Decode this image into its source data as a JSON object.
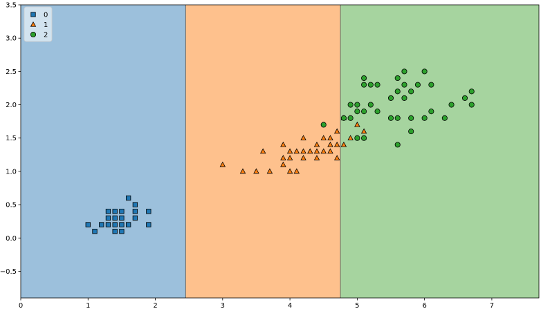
{
  "chart_data": {
    "type": "scatter",
    "title": "",
    "xlabel": "",
    "ylabel": "",
    "xlim": [
      0,
      7.7
    ],
    "ylim": [
      -0.9,
      3.5
    ],
    "x_ticks": [
      0,
      1,
      2,
      3,
      4,
      5,
      6,
      7
    ],
    "y_ticks": [
      -0.5,
      0.0,
      0.5,
      1.0,
      1.5,
      2.0,
      2.5,
      3.0,
      3.5
    ],
    "y_tick_labels": [
      "−0.5",
      "0.0",
      "0.5",
      "1.0",
      "1.5",
      "2.0",
      "2.5",
      "3.0",
      "3.5"
    ],
    "grid": false,
    "legend_placement": "top-left",
    "regions": [
      {
        "class": "0",
        "x_from": 0,
        "x_to": 2.45,
        "color": "#9cc0dc"
      },
      {
        "class": "1",
        "x_from": 2.45,
        "x_to": 4.75,
        "color": "#fec18d"
      },
      {
        "class": "2",
        "x_from": 4.75,
        "x_to": 7.7,
        "color": "#a6d49f"
      }
    ],
    "series": [
      {
        "name": "0",
        "marker": "square",
        "color": "#1f77b4",
        "points": [
          [
            1.0,
            0.2
          ],
          [
            1.1,
            0.1
          ],
          [
            1.2,
            0.2
          ],
          [
            1.3,
            0.2
          ],
          [
            1.3,
            0.3
          ],
          [
            1.3,
            0.4
          ],
          [
            1.4,
            0.1
          ],
          [
            1.4,
            0.2
          ],
          [
            1.4,
            0.3
          ],
          [
            1.4,
            0.4
          ],
          [
            1.5,
            0.1
          ],
          [
            1.5,
            0.2
          ],
          [
            1.5,
            0.3
          ],
          [
            1.5,
            0.4
          ],
          [
            1.6,
            0.2
          ],
          [
            1.6,
            0.6
          ],
          [
            1.7,
            0.3
          ],
          [
            1.7,
            0.4
          ],
          [
            1.7,
            0.5
          ],
          [
            1.9,
            0.2
          ],
          [
            1.9,
            0.4
          ]
        ]
      },
      {
        "name": "1",
        "marker": "triangle",
        "color": "#ff7f0e",
        "points": [
          [
            3.0,
            1.1
          ],
          [
            3.3,
            1.0
          ],
          [
            3.5,
            1.0
          ],
          [
            3.6,
            1.3
          ],
          [
            3.7,
            1.0
          ],
          [
            3.9,
            1.1
          ],
          [
            3.9,
            1.2
          ],
          [
            3.9,
            1.4
          ],
          [
            4.0,
            1.0
          ],
          [
            4.0,
            1.2
          ],
          [
            4.0,
            1.3
          ],
          [
            4.1,
            1.0
          ],
          [
            4.1,
            1.3
          ],
          [
            4.2,
            1.2
          ],
          [
            4.2,
            1.3
          ],
          [
            4.2,
            1.5
          ],
          [
            4.3,
            1.3
          ],
          [
            4.4,
            1.2
          ],
          [
            4.4,
            1.3
          ],
          [
            4.4,
            1.4
          ],
          [
            4.5,
            1.3
          ],
          [
            4.5,
            1.5
          ],
          [
            4.6,
            1.3
          ],
          [
            4.6,
            1.4
          ],
          [
            4.6,
            1.5
          ],
          [
            4.7,
            1.2
          ],
          [
            4.7,
            1.4
          ],
          [
            4.7,
            1.6
          ],
          [
            4.8,
            1.4
          ],
          [
            4.8,
            1.8
          ],
          [
            4.9,
            1.5
          ],
          [
            5.0,
            1.7
          ],
          [
            5.1,
            1.6
          ]
        ]
      },
      {
        "name": "2",
        "marker": "circle",
        "color": "#2ca02c",
        "points": [
          [
            4.5,
            1.7
          ],
          [
            4.8,
            1.8
          ],
          [
            4.9,
            1.8
          ],
          [
            4.9,
            2.0
          ],
          [
            5.0,
            1.5
          ],
          [
            5.0,
            1.9
          ],
          [
            5.0,
            2.0
          ],
          [
            5.1,
            1.5
          ],
          [
            5.1,
            1.9
          ],
          [
            5.1,
            2.3
          ],
          [
            5.1,
            2.4
          ],
          [
            5.2,
            2.0
          ],
          [
            5.2,
            2.3
          ],
          [
            5.3,
            1.9
          ],
          [
            5.3,
            2.3
          ],
          [
            5.5,
            1.8
          ],
          [
            5.5,
            2.1
          ],
          [
            5.6,
            1.4
          ],
          [
            5.6,
            1.8
          ],
          [
            5.6,
            2.2
          ],
          [
            5.6,
            2.4
          ],
          [
            5.7,
            2.1
          ],
          [
            5.7,
            2.3
          ],
          [
            5.7,
            2.5
          ],
          [
            5.8,
            1.6
          ],
          [
            5.8,
            1.8
          ],
          [
            5.8,
            2.2
          ],
          [
            5.9,
            2.3
          ],
          [
            6.0,
            1.8
          ],
          [
            6.0,
            2.5
          ],
          [
            6.1,
            1.9
          ],
          [
            6.1,
            2.3
          ],
          [
            6.3,
            1.8
          ],
          [
            6.4,
            2.0
          ],
          [
            6.6,
            2.1
          ],
          [
            6.7,
            2.0
          ],
          [
            6.7,
            2.2
          ]
        ]
      }
    ]
  }
}
